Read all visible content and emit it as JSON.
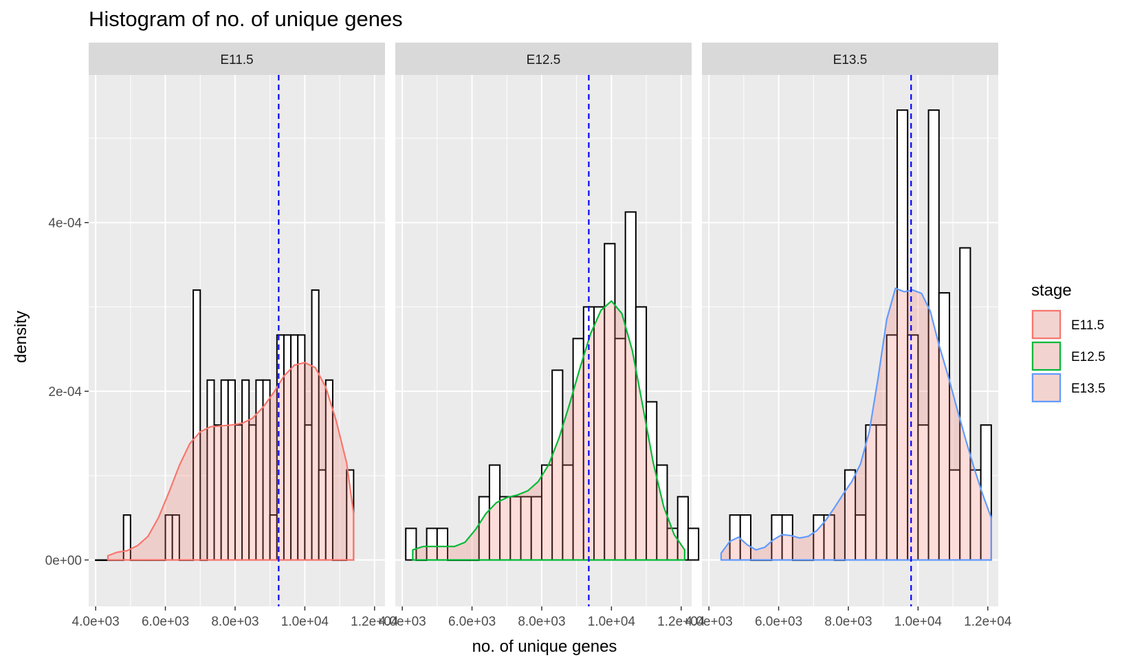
{
  "chart_data": {
    "type": "histogram",
    "title": "Histogram of no. of unique genes",
    "xlabel": "no. of unique genes",
    "ylabel": "density",
    "xlim": [
      3800,
      12300
    ],
    "ylim": [
      -5.5e-05,
      0.000575
    ],
    "x_ticks": [
      4000,
      6000,
      8000,
      10000,
      12000
    ],
    "x_tick_labels": [
      "4.0e+03",
      "6.0e+03",
      "8.0e+03",
      "1.0e+04",
      "1.2e+04"
    ],
    "y_ticks": [
      0,
      0.0002,
      0.0004
    ],
    "y_tick_labels": [
      "0e+00",
      "2e-04",
      "4e-04"
    ],
    "grid": true,
    "legend": {
      "title": "stage",
      "position": "right",
      "entries": [
        {
          "label": "E11.5",
          "color": "#F8766D"
        },
        {
          "label": "E12.5",
          "color": "#00BA38"
        },
        {
          "label": "E13.5",
          "color": "#619CFF"
        }
      ]
    },
    "density_fill": "#F8766D",
    "density_fill_opacity": 0.25,
    "mean_line_color": "#0000FF",
    "panels": [
      {
        "label": "E11.5",
        "color": "#F8766D",
        "mean": 9250,
        "bins": [
          {
            "x0": 4000,
            "x1": 4200,
            "density": 0
          },
          {
            "x0": 4200,
            "x1": 4400,
            "density": 0
          },
          {
            "x0": 4400,
            "x1": 4600,
            "density": 0
          },
          {
            "x0": 4600,
            "x1": 4800,
            "density": 0
          },
          {
            "x0": 4800,
            "x1": 5000,
            "density": 5.33e-05
          },
          {
            "x0": 5000,
            "x1": 5200,
            "density": 0
          },
          {
            "x0": 5200,
            "x1": 5400,
            "density": 0
          },
          {
            "x0": 5400,
            "x1": 5600,
            "density": 0
          },
          {
            "x0": 5600,
            "x1": 5800,
            "density": 0
          },
          {
            "x0": 5800,
            "x1": 6000,
            "density": 0
          },
          {
            "x0": 6000,
            "x1": 6200,
            "density": 5.33e-05
          },
          {
            "x0": 6200,
            "x1": 6400,
            "density": 5.33e-05
          },
          {
            "x0": 6400,
            "x1": 6600,
            "density": 0
          },
          {
            "x0": 6600,
            "x1": 6800,
            "density": 0
          },
          {
            "x0": 6800,
            "x1": 7000,
            "density": 0.00032
          },
          {
            "x0": 7000,
            "x1": 7200,
            "density": 0
          },
          {
            "x0": 7200,
            "x1": 7400,
            "density": 0.0002133
          },
          {
            "x0": 7400,
            "x1": 7600,
            "density": 0.00016
          },
          {
            "x0": 7600,
            "x1": 7800,
            "density": 0.0002133
          },
          {
            "x0": 7800,
            "x1": 8000,
            "density": 0.0002133
          },
          {
            "x0": 8000,
            "x1": 8200,
            "density": 0.00016
          },
          {
            "x0": 8200,
            "x1": 8400,
            "density": 0.0002133
          },
          {
            "x0": 8400,
            "x1": 8600,
            "density": 0.00016
          },
          {
            "x0": 8600,
            "x1": 8800,
            "density": 0.0002133
          },
          {
            "x0": 8800,
            "x1": 9000,
            "density": 0.0002133
          },
          {
            "x0": 9000,
            "x1": 9200,
            "density": 5.33e-05
          },
          {
            "x0": 9200,
            "x1": 9400,
            "density": 0.0002667
          },
          {
            "x0": 9400,
            "x1": 9600,
            "density": 0.0002667
          },
          {
            "x0": 9600,
            "x1": 9800,
            "density": 0.0002667
          },
          {
            "x0": 9800,
            "x1": 10000,
            "density": 0.0002667
          },
          {
            "x0": 10000,
            "x1": 10200,
            "density": 0.00016
          },
          {
            "x0": 10200,
            "x1": 10400,
            "density": 0.00032
          },
          {
            "x0": 10400,
            "x1": 10600,
            "density": 0.0001067
          },
          {
            "x0": 10600,
            "x1": 10800,
            "density": 0.0002133
          },
          {
            "x0": 10800,
            "x1": 11000,
            "density": 0
          },
          {
            "x0": 11000,
            "x1": 11200,
            "density": 0
          },
          {
            "x0": 11200,
            "x1": 11400,
            "density": 0.0001067
          }
        ],
        "density_curve": {
          "x": [
            4350,
            4600,
            4900,
            5200,
            5500,
            5800,
            6100,
            6400,
            6700,
            7000,
            7300,
            7600,
            7900,
            8200,
            8500,
            8800,
            9100,
            9400,
            9700,
            10000,
            10300,
            10600,
            10900,
            11200,
            11400
          ],
          "y": [
            5e-06,
            9e-06,
            1.1e-05,
            1.7e-05,
            2.8e-05,
            5e-05,
            8e-05,
            0.000112,
            0.000138,
            0.000152,
            0.000158,
            0.000159,
            0.00016,
            0.000162,
            0.000168,
            0.000181,
            0.000198,
            0.000218,
            0.000231,
            0.000234,
            0.000228,
            0.000205,
            0.000165,
            0.000115,
            5.5e-05
          ]
        }
      },
      {
        "label": "E12.5",
        "color": "#00BA38",
        "mean": 9350,
        "bins": [
          {
            "x0": 4100,
            "x1": 4400,
            "density": 3.75e-05
          },
          {
            "x0": 4400,
            "x1": 4700,
            "density": 0
          },
          {
            "x0": 4700,
            "x1": 5000,
            "density": 3.75e-05
          },
          {
            "x0": 5000,
            "x1": 5300,
            "density": 3.75e-05
          },
          {
            "x0": 5300,
            "x1": 5600,
            "density": 0
          },
          {
            "x0": 5600,
            "x1": 5900,
            "density": 0
          },
          {
            "x0": 5900,
            "x1": 6200,
            "density": 0
          },
          {
            "x0": 6200,
            "x1": 6500,
            "density": 7.5e-05
          },
          {
            "x0": 6500,
            "x1": 6800,
            "density": 0.0001125
          },
          {
            "x0": 6800,
            "x1": 7100,
            "density": 7.5e-05
          },
          {
            "x0": 7100,
            "x1": 7400,
            "density": 7.5e-05
          },
          {
            "x0": 7400,
            "x1": 7700,
            "density": 7.5e-05
          },
          {
            "x0": 7700,
            "x1": 8000,
            "density": 7.5e-05
          },
          {
            "x0": 8000,
            "x1": 8300,
            "density": 0.0001125
          },
          {
            "x0": 8300,
            "x1": 8600,
            "density": 0.000225
          },
          {
            "x0": 8600,
            "x1": 8900,
            "density": 0.0001125
          },
          {
            "x0": 8900,
            "x1": 9200,
            "density": 0.0002625
          },
          {
            "x0": 9200,
            "x1": 9500,
            "density": 0.0003
          },
          {
            "x0": 9500,
            "x1": 9800,
            "density": 0.0003
          },
          {
            "x0": 9800,
            "x1": 10100,
            "density": 0.000375
          },
          {
            "x0": 10100,
            "x1": 10400,
            "density": 0.0002625
          },
          {
            "x0": 10400,
            "x1": 10700,
            "density": 0.0004125
          },
          {
            "x0": 10700,
            "x1": 11000,
            "density": 0.0003
          },
          {
            "x0": 11000,
            "x1": 11300,
            "density": 0.0001875
          },
          {
            "x0": 11300,
            "x1": 11600,
            "density": 0.0001125
          },
          {
            "x0": 11600,
            "x1": 11900,
            "density": 3.75e-05
          },
          {
            "x0": 11900,
            "x1": 12200,
            "density": 7.5e-05
          },
          {
            "x0": 12200,
            "x1": 12500,
            "density": 3.75e-05
          }
        ],
        "density_curve": {
          "x": [
            4300,
            4600,
            4900,
            5200,
            5500,
            5800,
            6100,
            6400,
            6700,
            7000,
            7300,
            7600,
            7900,
            8200,
            8500,
            8800,
            9100,
            9400,
            9700,
            10000,
            10300,
            10600,
            10900,
            11200,
            11500,
            11800,
            12100
          ],
          "y": [
            1.2e-05,
            1.6e-05,
            1.6e-05,
            1.6e-05,
            1.6e-05,
            2.1e-05,
            3.6e-05,
            5.5e-05,
            6.8e-05,
            7.4e-05,
            7.7e-05,
            8.2e-05,
            9.3e-05,
            0.000113,
            0.000145,
            0.000185,
            0.000228,
            0.000268,
            0.000296,
            0.000307,
            0.000292,
            0.000248,
            0.000182,
            0.000115,
            6.3e-05,
            3e-05,
            1.2e-05
          ]
        }
      },
      {
        "label": "E13.5",
        "color": "#619CFF",
        "mean": 9800,
        "bins": [
          {
            "x0": 4600,
            "x1": 4900,
            "density": 5.33e-05
          },
          {
            "x0": 4900,
            "x1": 5200,
            "density": 5.33e-05
          },
          {
            "x0": 5200,
            "x1": 5500,
            "density": 0
          },
          {
            "x0": 5500,
            "x1": 5800,
            "density": 0
          },
          {
            "x0": 5800,
            "x1": 6100,
            "density": 5.33e-05
          },
          {
            "x0": 6100,
            "x1": 6400,
            "density": 5.33e-05
          },
          {
            "x0": 6400,
            "x1": 6700,
            "density": 0
          },
          {
            "x0": 6700,
            "x1": 7000,
            "density": 0
          },
          {
            "x0": 7000,
            "x1": 7300,
            "density": 5.33e-05
          },
          {
            "x0": 7300,
            "x1": 7600,
            "density": 5.33e-05
          },
          {
            "x0": 7600,
            "x1": 7900,
            "density": 0
          },
          {
            "x0": 7900,
            "x1": 8200,
            "density": 0.0001067
          },
          {
            "x0": 8200,
            "x1": 8500,
            "density": 5.33e-05
          },
          {
            "x0": 8500,
            "x1": 8800,
            "density": 0.00016
          },
          {
            "x0": 8800,
            "x1": 9100,
            "density": 0.00016
          },
          {
            "x0": 9100,
            "x1": 9400,
            "density": 0.0002667
          },
          {
            "x0": 9400,
            "x1": 9700,
            "density": 0.0005333
          },
          {
            "x0": 9700,
            "x1": 10000,
            "density": 0.0002667
          },
          {
            "x0": 10000,
            "x1": 10300,
            "density": 0.00016
          },
          {
            "x0": 10300,
            "x1": 10600,
            "density": 0.0005333
          },
          {
            "x0": 10600,
            "x1": 10900,
            "density": 0.0003167
          },
          {
            "x0": 10900,
            "x1": 11200,
            "density": 0.0001067
          },
          {
            "x0": 11200,
            "x1": 11500,
            "density": 0.00037
          },
          {
            "x0": 11500,
            "x1": 11800,
            "density": 0.0001067
          },
          {
            "x0": 11800,
            "x1": 12100,
            "density": 0.00016
          }
        ],
        "density_curve": {
          "x": [
            4350,
            4600,
            4850,
            5100,
            5350,
            5600,
            5850,
            6100,
            6350,
            6600,
            6850,
            7100,
            7350,
            7600,
            7850,
            8100,
            8350,
            8600,
            8850,
            9100,
            9350,
            9600,
            9850,
            10100,
            10350,
            10600,
            10850,
            11100,
            11350,
            11600,
            11850,
            12100
          ],
          "y": [
            8e-06,
            2.2e-05,
            2.7e-05,
            1.8e-05,
            1.2e-05,
            1.5e-05,
            2.4e-05,
            3e-05,
            2.9e-05,
            2.6e-05,
            2.8e-05,
            3.5e-05,
            4.7e-05,
            6.2e-05,
            7.8e-05,
            9.3e-05,
            0.000114,
            0.000152,
            0.000215,
            0.000285,
            0.000322,
            0.000318,
            0.00032,
            0.000316,
            0.000295,
            0.000255,
            0.00022,
            0.000182,
            0.000145,
            0.00011,
            7.8e-05,
            5e-05
          ]
        }
      }
    ]
  }
}
